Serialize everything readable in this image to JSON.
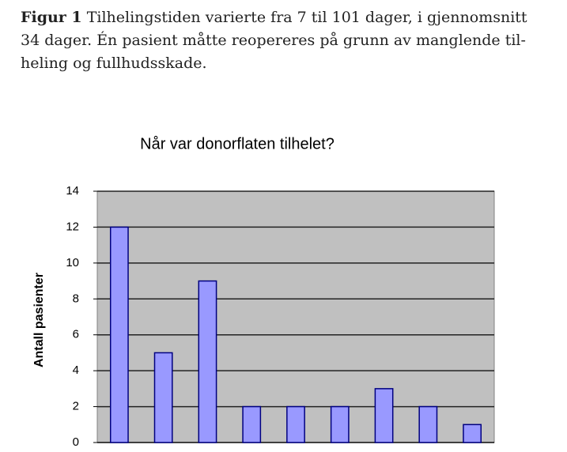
{
  "caption": {
    "label": "Figur 1",
    "lines": [
      "Tilhelingstiden varierte fra 7 til 101 dager, i gjennomsnitt",
      "34 dager. Én pasient måtte reopereres på grunn av manglende til-",
      "heling og fullhudsskade."
    ]
  },
  "chart_data": {
    "type": "bar",
    "title": "Når var donorflaten tilhelet?",
    "y_label": "Antall pasienter",
    "categories": [
      null,
      null,
      null,
      null,
      null,
      null,
      null,
      null,
      null
    ],
    "values": [
      12,
      5,
      9,
      2,
      2,
      2,
      3,
      2,
      1
    ],
    "color": "#9999ff",
    "ylim": [
      0,
      14
    ],
    "yticks": [
      0,
      2,
      4,
      6,
      8,
      10,
      12,
      14
    ],
    "grid": true
  }
}
